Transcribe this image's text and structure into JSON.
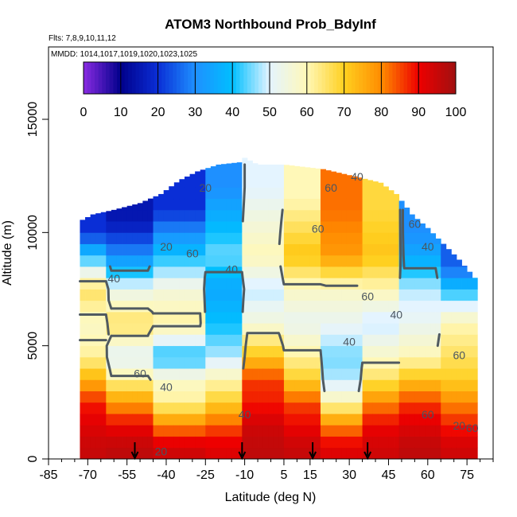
{
  "chart_data": {
    "type": "heatmap",
    "title": "ATOM3 Northbound Prob_BdyInf",
    "subtitle_flights": "Flts: 7,8,9,10,11,12",
    "subtitle_dates": "MMDD: 1014,1017,1019,1020,1023,1025",
    "xlabel": "Latitude (deg N)",
    "ylabel": "Altitude (m)",
    "xlim": [
      -85,
      85
    ],
    "ylim": [
      0,
      17500
    ],
    "x_ticks": [
      -85,
      -70,
      -55,
      -40,
      -25,
      -10,
      5,
      15,
      30,
      45,
      60,
      75
    ],
    "x_ticks_minor": [
      -80,
      -75,
      -65,
      -60,
      -50,
      -45,
      -35,
      -30,
      -20,
      -15,
      -5,
      0,
      10,
      20,
      25,
      35,
      40,
      50,
      55,
      65,
      70,
      80,
      85
    ],
    "y_ticks": [
      0,
      5000,
      10000,
      15000
    ],
    "colorbar": {
      "min": 0,
      "max": 100,
      "ticks": [
        0,
        10,
        20,
        30,
        40,
        50,
        60,
        70,
        80,
        90,
        100
      ],
      "stops": [
        {
          "v": 0,
          "color": "#8a2be2"
        },
        {
          "v": 10,
          "color": "#00008b"
        },
        {
          "v": 20,
          "color": "#0a2ed6"
        },
        {
          "v": 30,
          "color": "#1e90ff"
        },
        {
          "v": 40,
          "color": "#00bfff"
        },
        {
          "v": 50,
          "color": "#e4f4ff"
        },
        {
          "v": 60,
          "color": "#fff8b8"
        },
        {
          "v": 70,
          "color": "#ffd020"
        },
        {
          "v": 80,
          "color": "#ff8c00"
        },
        {
          "v": 90,
          "color": "#ee0000"
        },
        {
          "v": 100,
          "color": "#a01010"
        }
      ]
    },
    "profile_envelope": [
      {
        "lat": -73,
        "top": 10500
      },
      {
        "lat": -68,
        "top": 10800
      },
      {
        "lat": -60,
        "top": 11000
      },
      {
        "lat": -50,
        "top": 11300
      },
      {
        "lat": -42,
        "top": 11700
      },
      {
        "lat": -35,
        "top": 12300
      },
      {
        "lat": -28,
        "top": 12700
      },
      {
        "lat": -20,
        "top": 13000
      },
      {
        "lat": -12,
        "top": 13100
      },
      {
        "lat": -10,
        "top": 13300
      },
      {
        "lat": -5,
        "top": 13000
      },
      {
        "lat": 5,
        "top": 13000
      },
      {
        "lat": 20,
        "top": 12800
      },
      {
        "lat": 35,
        "top": 12400
      },
      {
        "lat": 42,
        "top": 12200
      },
      {
        "lat": 48,
        "top": 11700
      },
      {
        "lat": 54,
        "top": 10800
      },
      {
        "lat": 60,
        "top": 10200
      },
      {
        "lat": 66,
        "top": 9500
      },
      {
        "lat": 72,
        "top": 8800
      },
      {
        "lat": 78,
        "top": 8000
      }
    ],
    "probability_by_latitude_band": [
      {
        "lat": [
          -73,
          -62
        ],
        "alt_levels": [
          500,
          1500,
          2500,
          3500,
          4500,
          6000,
          7500,
          9000,
          10000
        ],
        "values": [
          95,
          92,
          88,
          75,
          62,
          58,
          66,
          40,
          20
        ]
      },
      {
        "lat": [
          -62,
          -45
        ],
        "alt_levels": [
          500,
          1500,
          2500,
          3500,
          4500,
          6000,
          7500,
          9000,
          10500
        ],
        "values": [
          96,
          90,
          78,
          62,
          50,
          66,
          52,
          30,
          15
        ]
      },
      {
        "lat": [
          -45,
          -25
        ],
        "alt_levels": [
          500,
          1500,
          2500,
          3500,
          4500,
          6000,
          7500,
          9000,
          11000
        ],
        "values": [
          94,
          80,
          62,
          58,
          40,
          62,
          55,
          40,
          20
        ]
      },
      {
        "lat": [
          -25,
          -10
        ],
        "alt_levels": [
          500,
          1500,
          2500,
          3500,
          4500,
          6000,
          7500,
          9000,
          12000
        ],
        "values": [
          92,
          84,
          70,
          60,
          48,
          40,
          35,
          45,
          30
        ]
      },
      {
        "lat": [
          -10,
          5
        ],
        "alt_levels": [
          500,
          1500,
          2500,
          3500,
          4500,
          6000,
          7500,
          9000,
          12000
        ],
        "values": [
          96,
          94,
          88,
          86,
          72,
          55,
          48,
          60,
          50
        ]
      },
      {
        "lat": [
          5,
          20
        ],
        "alt_levels": [
          500,
          1500,
          2500,
          3500,
          4500,
          6000,
          7500,
          9000,
          11500
        ],
        "values": [
          95,
          90,
          85,
          70,
          62,
          52,
          58,
          72,
          60
        ]
      },
      {
        "lat": [
          20,
          35
        ],
        "alt_levels": [
          500,
          1500,
          2500,
          3500,
          4500,
          6000,
          7500,
          9000,
          11000
        ],
        "values": [
          92,
          80,
          60,
          48,
          45,
          52,
          58,
          78,
          82
        ]
      },
      {
        "lat": [
          35,
          50
        ],
        "alt_levels": [
          500,
          1500,
          2500,
          3500,
          4500,
          6000,
          7500,
          9000,
          11000
        ],
        "values": [
          94,
          90,
          80,
          66,
          58,
          48,
          60,
          72,
          68
        ]
      },
      {
        "lat": [
          50,
          65
        ],
        "alt_levels": [
          500,
          1500,
          2500,
          3500,
          4500,
          6000,
          7500,
          9000,
          10000
        ],
        "values": [
          96,
          92,
          86,
          72,
          60,
          52,
          48,
          35,
          30
        ]
      },
      {
        "lat": [
          65,
          78
        ],
        "alt_levels": [
          500,
          1500,
          2500,
          3500,
          4500,
          6000,
          7500,
          8500
        ],
        "values": [
          94,
          88,
          80,
          70,
          66,
          60,
          40,
          25
        ]
      }
    ],
    "contour_levels": [
      20,
      40,
      60
    ],
    "contour_labels": [
      {
        "text": "20",
        "lat": -40,
        "alt": 9200
      },
      {
        "text": "20",
        "lat": -25,
        "alt": 11800
      },
      {
        "text": "60",
        "lat": -30,
        "alt": 8900
      },
      {
        "text": "40",
        "lat": -15,
        "alt": 8200
      },
      {
        "text": "40",
        "lat": -60,
        "alt": 7800
      },
      {
        "text": "60",
        "lat": 18,
        "alt": 10000
      },
      {
        "text": "60",
        "lat": 23,
        "alt": 11800
      },
      {
        "text": "40",
        "lat": 33,
        "alt": 12300
      },
      {
        "text": "60",
        "lat": 55,
        "alt": 10200
      },
      {
        "text": "40",
        "lat": 60,
        "alt": 9200
      },
      {
        "text": "60",
        "lat": 37,
        "alt": 7000
      },
      {
        "text": "40",
        "lat": 30,
        "alt": 5000
      },
      {
        "text": "40",
        "lat": 48,
        "alt": 6200
      },
      {
        "text": "60",
        "lat": -50,
        "alt": 3600
      },
      {
        "text": "40",
        "lat": -40,
        "alt": 3000
      },
      {
        "text": "40",
        "lat": -10,
        "alt": 1800
      },
      {
        "text": "60",
        "lat": 72,
        "alt": 4400
      },
      {
        "text": "20",
        "lat": 72,
        "alt": 1300
      },
      {
        "text": "60",
        "lat": 77,
        "alt": 1200
      },
      {
        "text": "60",
        "lat": 60,
        "alt": 1800
      },
      {
        "text": "20",
        "lat": -42,
        "alt": 150
      }
    ],
    "markers_down_arrows_lat": [
      -52,
      -11,
      16,
      37
    ]
  }
}
